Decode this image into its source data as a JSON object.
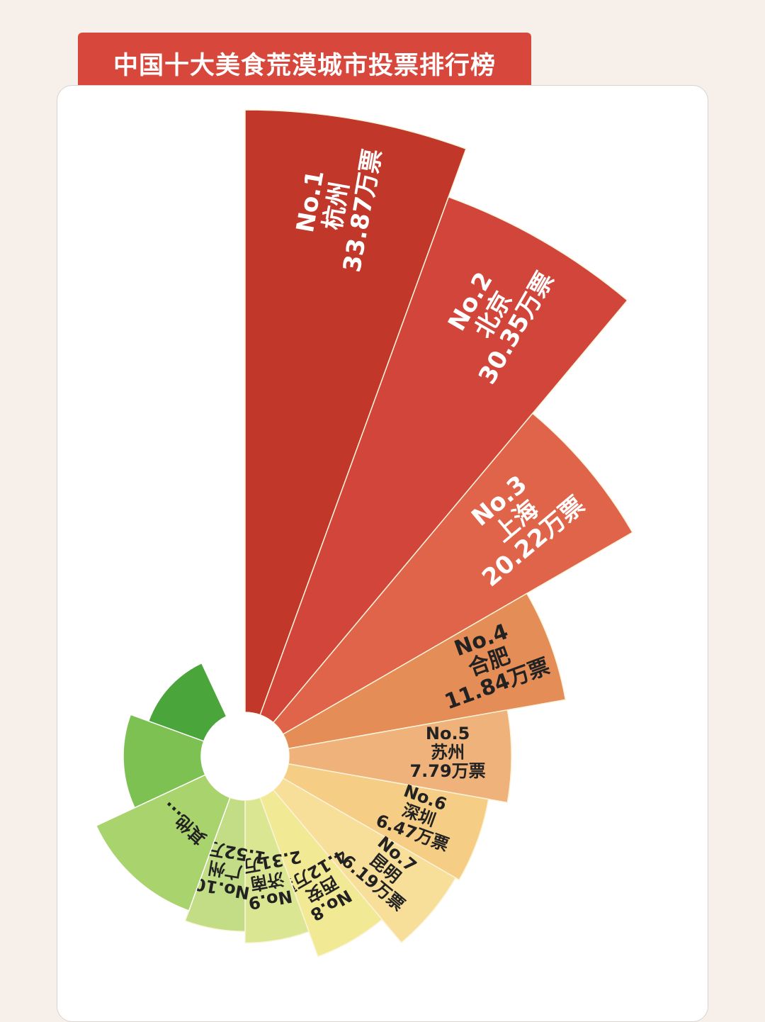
{
  "title": "中国十大美食荒漠城市投票排行榜",
  "chart_data": {
    "type": "pie",
    "subtype": "nightingale-rose (half fan)",
    "title": "中国十大美食荒漠城市投票排行榜",
    "unit": "万票",
    "series": [
      {
        "rank": "No.1",
        "city": "杭州",
        "value": 33.87,
        "value_label": "33.87万票",
        "color": "#c1382b",
        "text_color": "#ffffff"
      },
      {
        "rank": "No.2",
        "city": "北京",
        "value": 30.35,
        "value_label": "30.35万票",
        "color": "#d2453a",
        "text_color": "#ffffff"
      },
      {
        "rank": "No.3",
        "city": "上海",
        "value": 20.22,
        "value_label": "20.22万票",
        "color": "#df6449",
        "text_color": "#ffffff"
      },
      {
        "rank": "No.4",
        "city": "合肥",
        "value": 11.84,
        "value_label": "11.84万票",
        "color": "#e48d56",
        "text_color": "#222222"
      },
      {
        "rank": "No.5",
        "city": "苏州",
        "value": 7.79,
        "value_label": "7.79万票",
        "color": "#efb27b",
        "text_color": "#222222"
      },
      {
        "rank": "No.6",
        "city": "深圳",
        "value": 6.47,
        "value_label": "6.47万票",
        "color": "#f5cd84",
        "text_color": "#222222"
      },
      {
        "rank": "No.7",
        "city": "昆明",
        "value": 6.19,
        "value_label": "6.19万票",
        "color": "#f7df9a",
        "text_color": "#222222"
      },
      {
        "rank": "No.8",
        "city": "西安",
        "value": 4.12,
        "value_label": "4.12万票",
        "color": "#f1e993",
        "text_color": "#222222"
      },
      {
        "rank": "No.9",
        "city": "济南",
        "value": 2.31,
        "value_label": "2.31万票",
        "color": "#dbe692",
        "text_color": "#222222"
      },
      {
        "rank": "No.10",
        "city": "广州",
        "value": 1.52,
        "value_label": "1.52万票",
        "color": "#c2dd86",
        "text_color": "#222222"
      }
    ],
    "others": [
      {
        "name": "其他...",
        "color": "#a9d36c",
        "text_color": "#222222"
      },
      {
        "name": "",
        "color": "#7cc152",
        "text_color": "#222222"
      },
      {
        "name": "",
        "color": "#4aa53a",
        "text_color": "#222222"
      }
    ]
  }
}
